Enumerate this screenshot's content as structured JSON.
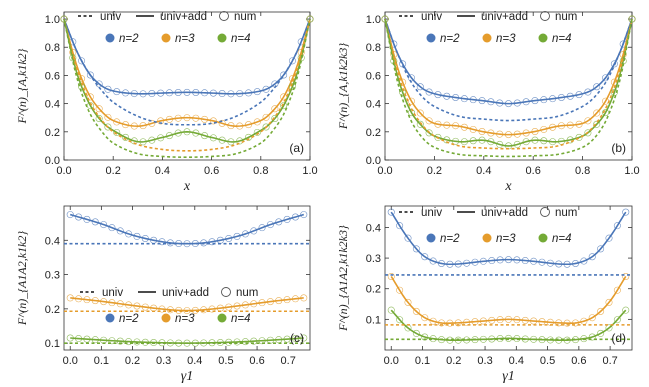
{
  "legend_text": {
    "univ": "univ",
    "univ_add": "univ+add",
    "num": "num",
    "n_labels": [
      "n=2",
      "n=3",
      "n=4"
    ]
  },
  "colors": {
    "n2": "#4a76b8",
    "n3": "#e59c2c",
    "n4": "#74aa36"
  },
  "chart_data": [
    {
      "type": "line",
      "panel_label": "(a)",
      "xlabel": "x",
      "ylabel": "F^(n)_{A,k1k2}",
      "xlim": [
        0,
        1
      ],
      "ylim": [
        0,
        1.05
      ],
      "xticks": [
        "0.0",
        "0.2",
        "0.4",
        "0.6",
        "0.8",
        "1.0"
      ],
      "yticks": [
        "0.0",
        "0.2",
        "0.4",
        "0.6",
        "0.8",
        "1.0"
      ],
      "grid": false,
      "x": [
        0.0,
        0.05,
        0.1,
        0.15,
        0.2,
        0.3,
        0.4,
        0.5,
        0.6,
        0.7,
        0.8,
        0.85,
        0.9,
        0.95,
        1.0
      ],
      "series": [
        {
          "name": "n=2",
          "kind": "univ+add",
          "values": [
            1.0,
            0.78,
            0.62,
            0.53,
            0.49,
            0.47,
            0.475,
            0.48,
            0.475,
            0.47,
            0.49,
            0.53,
            0.62,
            0.78,
            1.0
          ]
        },
        {
          "name": "n=3",
          "kind": "univ+add",
          "values": [
            1.0,
            0.68,
            0.47,
            0.35,
            0.28,
            0.24,
            0.28,
            0.3,
            0.28,
            0.24,
            0.28,
            0.35,
            0.47,
            0.68,
            1.0
          ]
        },
        {
          "name": "n=4",
          "kind": "univ+add",
          "values": [
            1.0,
            0.63,
            0.41,
            0.28,
            0.21,
            0.13,
            0.16,
            0.2,
            0.16,
            0.13,
            0.21,
            0.28,
            0.41,
            0.63,
            1.0
          ]
        },
        {
          "name": "n=2",
          "kind": "univ",
          "values": [
            1.0,
            0.78,
            0.62,
            0.5,
            0.41,
            0.31,
            0.26,
            0.25,
            0.26,
            0.31,
            0.41,
            0.5,
            0.62,
            0.78,
            1.0
          ]
        },
        {
          "name": "n=3",
          "kind": "univ",
          "values": [
            1.0,
            0.66,
            0.43,
            0.29,
            0.2,
            0.11,
            0.075,
            0.065,
            0.075,
            0.11,
            0.2,
            0.29,
            0.43,
            0.66,
            1.0
          ]
        },
        {
          "name": "n=4",
          "kind": "univ",
          "values": [
            1.0,
            0.6,
            0.35,
            0.21,
            0.12,
            0.045,
            0.025,
            0.02,
            0.025,
            0.045,
            0.12,
            0.21,
            0.35,
            0.6,
            1.0
          ]
        }
      ]
    },
    {
      "type": "line",
      "panel_label": "(b)",
      "xlabel": "x",
      "ylabel": "F^(n)_{A,k1k2k3}",
      "xlim": [
        0,
        1
      ],
      "ylim": [
        0,
        1.05
      ],
      "xticks": [
        "0.0",
        "0.2",
        "0.4",
        "0.6",
        "0.8",
        "1.0"
      ],
      "yticks": [
        "0.0",
        "0.2",
        "0.4",
        "0.6",
        "0.8",
        "1.0"
      ],
      "grid": false,
      "x": [
        0.0,
        0.05,
        0.1,
        0.15,
        0.2,
        0.3,
        0.4,
        0.5,
        0.6,
        0.7,
        0.8,
        0.85,
        0.9,
        0.95,
        1.0
      ],
      "series": [
        {
          "name": "n=2",
          "kind": "univ+add",
          "values": [
            1.0,
            0.76,
            0.6,
            0.51,
            0.47,
            0.44,
            0.42,
            0.4,
            0.42,
            0.44,
            0.47,
            0.51,
            0.6,
            0.76,
            1.0
          ]
        },
        {
          "name": "n=3",
          "kind": "univ+add",
          "values": [
            1.0,
            0.66,
            0.44,
            0.32,
            0.26,
            0.24,
            0.2,
            0.18,
            0.2,
            0.24,
            0.26,
            0.32,
            0.44,
            0.66,
            1.0
          ]
        },
        {
          "name": "n=4",
          "kind": "univ+add",
          "values": [
            1.0,
            0.6,
            0.36,
            0.24,
            0.17,
            0.13,
            0.14,
            0.1,
            0.14,
            0.13,
            0.17,
            0.24,
            0.36,
            0.6,
            1.0
          ]
        },
        {
          "name": "n=2",
          "kind": "univ",
          "values": [
            1.0,
            0.76,
            0.57,
            0.45,
            0.38,
            0.31,
            0.29,
            0.28,
            0.29,
            0.31,
            0.38,
            0.45,
            0.57,
            0.76,
            1.0
          ]
        },
        {
          "name": "n=3",
          "kind": "univ",
          "values": [
            1.0,
            0.63,
            0.39,
            0.25,
            0.17,
            0.1,
            0.085,
            0.08,
            0.085,
            0.1,
            0.17,
            0.25,
            0.39,
            0.63,
            1.0
          ]
        },
        {
          "name": "n=4",
          "kind": "univ",
          "values": [
            1.0,
            0.56,
            0.3,
            0.16,
            0.09,
            0.04,
            0.03,
            0.025,
            0.03,
            0.04,
            0.09,
            0.16,
            0.3,
            0.56,
            1.0
          ]
        }
      ]
    },
    {
      "type": "line",
      "panel_label": "(c)",
      "xlabel": "γ1",
      "ylabel": "F^(n)_{A1A2,k1k2}",
      "xlim": [
        -0.02,
        0.77
      ],
      "ylim": [
        0.08,
        0.5
      ],
      "xticks": [
        "0.0",
        "0.1",
        "0.2",
        "0.3",
        "0.4",
        "0.5",
        "0.6",
        "0.7"
      ],
      "yticks": [
        "0.1",
        "0.2",
        "0.3",
        "0.4"
      ],
      "grid": false,
      "x": [
        0.0,
        0.1,
        0.2,
        0.3,
        0.375,
        0.45,
        0.55,
        0.65,
        0.75
      ],
      "series": [
        {
          "name": "n=2",
          "kind": "univ+add",
          "values": [
            0.475,
            0.448,
            0.415,
            0.395,
            0.39,
            0.395,
            0.415,
            0.448,
            0.475
          ]
        },
        {
          "name": "n=3",
          "kind": "univ+add",
          "values": [
            0.232,
            0.222,
            0.21,
            0.199,
            0.195,
            0.199,
            0.21,
            0.222,
            0.232
          ]
        },
        {
          "name": "n=4",
          "kind": "univ+add",
          "values": [
            0.115,
            0.109,
            0.104,
            0.101,
            0.1,
            0.101,
            0.104,
            0.109,
            0.115
          ]
        },
        {
          "name": "n=2",
          "kind": "univ",
          "values": [
            0.39,
            0.39,
            0.39,
            0.39,
            0.39,
            0.39,
            0.39,
            0.39,
            0.39
          ]
        },
        {
          "name": "n=3",
          "kind": "univ",
          "values": [
            0.193,
            0.193,
            0.193,
            0.193,
            0.193,
            0.193,
            0.193,
            0.193,
            0.193
          ]
        },
        {
          "name": "n=4",
          "kind": "univ",
          "values": [
            0.1,
            0.1,
            0.1,
            0.1,
            0.1,
            0.1,
            0.1,
            0.1,
            0.1
          ]
        }
      ]
    },
    {
      "type": "line",
      "panel_label": "(d)",
      "xlabel": "γ1",
      "ylabel": "F^(n)_{A1A2,k1k2k3}",
      "xlim": [
        -0.02,
        0.77
      ],
      "ylim": [
        0.0,
        0.47
      ],
      "xticks": [
        "0.0",
        "0.1",
        "0.2",
        "0.3",
        "0.4",
        "0.5",
        "0.6",
        "0.7"
      ],
      "yticks": [
        "0.1",
        "0.2",
        "0.3",
        "0.4"
      ],
      "grid": false,
      "x": [
        0.0,
        0.05,
        0.1,
        0.15,
        0.2,
        0.3,
        0.375,
        0.45,
        0.55,
        0.6,
        0.65,
        0.7,
        0.75
      ],
      "series": [
        {
          "name": "n=2",
          "kind": "univ+add",
          "values": [
            0.45,
            0.37,
            0.31,
            0.285,
            0.28,
            0.29,
            0.295,
            0.29,
            0.28,
            0.285,
            0.31,
            0.37,
            0.45
          ]
        },
        {
          "name": "n=3",
          "kind": "univ+add",
          "values": [
            0.24,
            0.16,
            0.11,
            0.09,
            0.088,
            0.095,
            0.1,
            0.095,
            0.088,
            0.09,
            0.11,
            0.16,
            0.24
          ]
        },
        {
          "name": "n=4",
          "kind": "univ+add",
          "values": [
            0.13,
            0.075,
            0.045,
            0.035,
            0.032,
            0.035,
            0.038,
            0.035,
            0.032,
            0.035,
            0.045,
            0.075,
            0.13
          ]
        },
        {
          "name": "n=2",
          "kind": "univ",
          "values": [
            0.245,
            0.245,
            0.245,
            0.245,
            0.245,
            0.245,
            0.245,
            0.245,
            0.245,
            0.245,
            0.245,
            0.245,
            0.245
          ]
        },
        {
          "name": "n=3",
          "kind": "univ",
          "values": [
            0.082,
            0.082,
            0.082,
            0.082,
            0.082,
            0.082,
            0.082,
            0.082,
            0.082,
            0.082,
            0.082,
            0.082,
            0.082
          ]
        },
        {
          "name": "n=4",
          "kind": "univ",
          "values": [
            0.035,
            0.035,
            0.035,
            0.035,
            0.035,
            0.035,
            0.035,
            0.035,
            0.035,
            0.035,
            0.035,
            0.035,
            0.035
          ]
        }
      ]
    }
  ]
}
